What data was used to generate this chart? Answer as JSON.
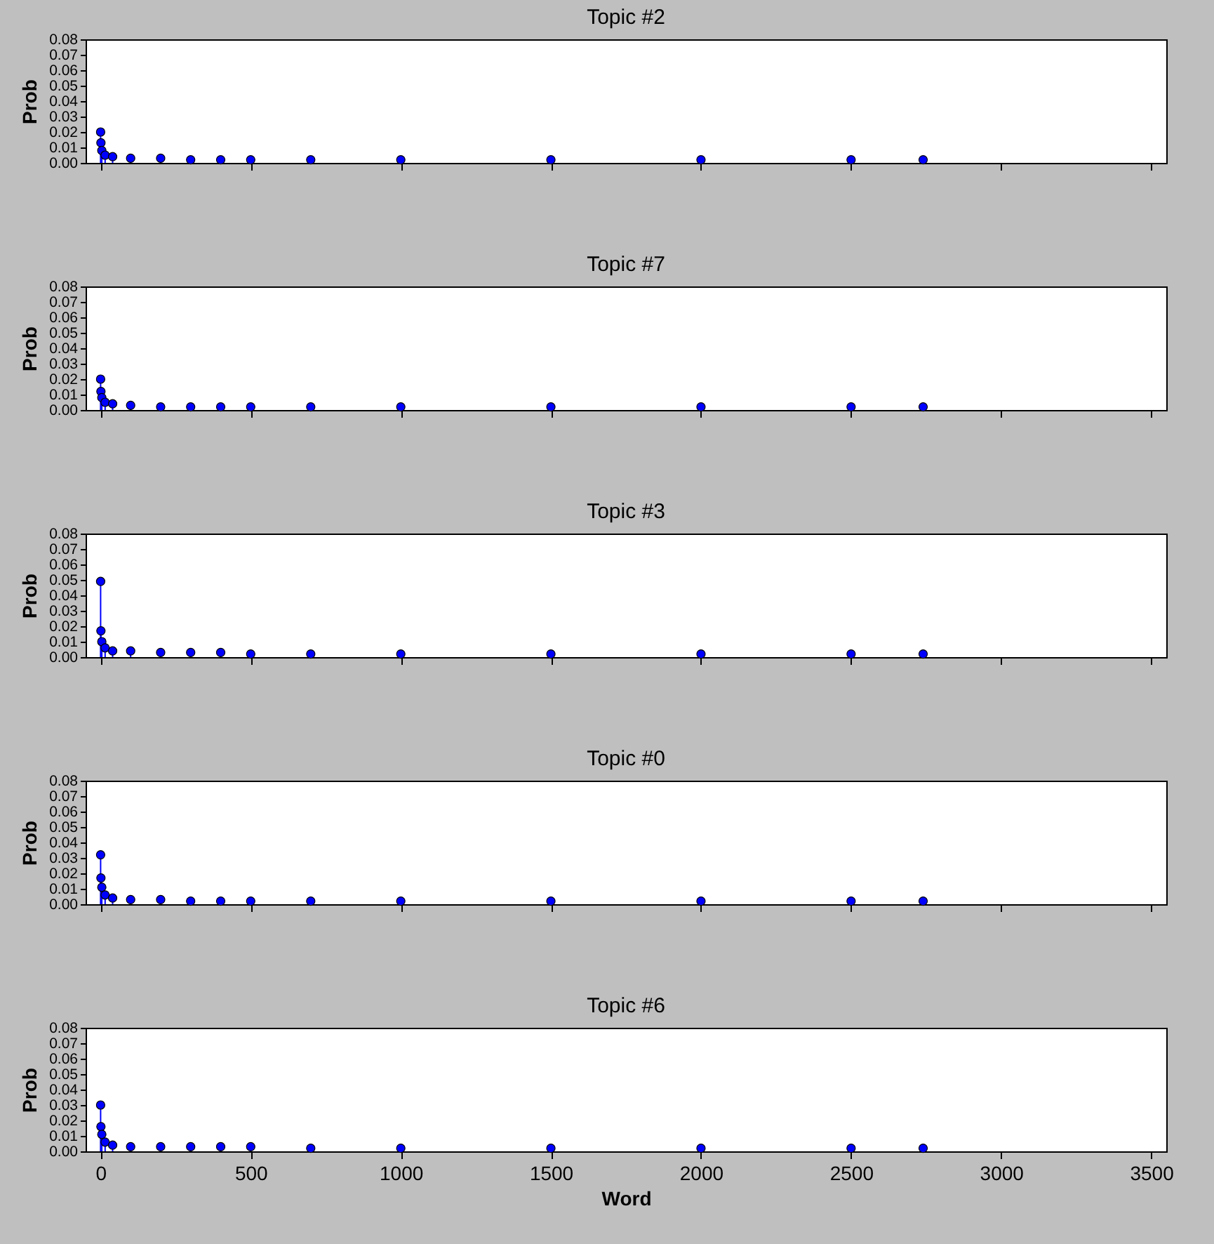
{
  "chart_data": [
    {
      "type": "lollipop",
      "title": "Topic #2",
      "ylabel": "Prob",
      "marker": "circle",
      "tick_labels": "y",
      "xlim": [
        -50,
        3550
      ],
      "xticks": [
        0,
        500,
        1000,
        1500,
        2000,
        2500,
        3000,
        3500
      ],
      "ylim": [
        0,
        0.08
      ],
      "yticks": [
        {
          "value": 0,
          "label": "0.00"
        },
        {
          "value": 0.01,
          "label": "0.01"
        },
        {
          "value": 0.02,
          "label": "0.02"
        },
        {
          "value": 0.03,
          "label": "0.03"
        },
        {
          "value": 0.04,
          "label": "0.04"
        },
        {
          "value": 0.05,
          "label": "0.05"
        },
        {
          "value": 0.06,
          "label": "0.06"
        },
        {
          "value": 0.07,
          "label": "0.07"
        },
        {
          "value": 0.08,
          "label": "0.08"
        }
      ],
      "x": [
        0,
        1,
        4,
        15,
        40,
        100,
        200,
        300,
        400,
        500,
        700,
        1000,
        1500,
        2000,
        2500,
        2740
      ],
      "series": [
        {
          "color": "#0000ff",
          "values": [
            0.02,
            0.013,
            0.008,
            0.005,
            0.004,
            0.003,
            0.003,
            0.002,
            0.002,
            0.002,
            0.002,
            0.002,
            0.002,
            0.002,
            0.002,
            0.002
          ]
        }
      ]
    },
    {
      "type": "lollipop",
      "title": "Topic #7",
      "ylabel": "Prob",
      "marker": "circle",
      "tick_labels": "y",
      "xlim": [
        -50,
        3550
      ],
      "xticks": [
        0,
        500,
        1000,
        1500,
        2000,
        2500,
        3000,
        3500
      ],
      "ylim": [
        0,
        0.08
      ],
      "yticks": [
        {
          "value": 0,
          "label": "0.00"
        },
        {
          "value": 0.01,
          "label": "0.01"
        },
        {
          "value": 0.02,
          "label": "0.02"
        },
        {
          "value": 0.03,
          "label": "0.03"
        },
        {
          "value": 0.04,
          "label": "0.04"
        },
        {
          "value": 0.05,
          "label": "0.05"
        },
        {
          "value": 0.06,
          "label": "0.06"
        },
        {
          "value": 0.07,
          "label": "0.07"
        },
        {
          "value": 0.08,
          "label": "0.08"
        }
      ],
      "x": [
        0,
        1,
        4,
        15,
        40,
        100,
        200,
        300,
        400,
        500,
        700,
        1000,
        1500,
        2000,
        2500,
        2740
      ],
      "series": [
        {
          "color": "#0000ff",
          "values": [
            0.02,
            0.012,
            0.008,
            0.005,
            0.004,
            0.003,
            0.002,
            0.002,
            0.002,
            0.002,
            0.002,
            0.002,
            0.002,
            0.002,
            0.002,
            0.002
          ]
        }
      ]
    },
    {
      "type": "lollipop",
      "title": "Topic #3",
      "ylabel": "Prob",
      "marker": "circle",
      "tick_labels": "y",
      "xlim": [
        -50,
        3550
      ],
      "xticks": [
        0,
        500,
        1000,
        1500,
        2000,
        2500,
        3000,
        3500
      ],
      "ylim": [
        0,
        0.08
      ],
      "yticks": [
        {
          "value": 0,
          "label": "0.00"
        },
        {
          "value": 0.01,
          "label": "0.01"
        },
        {
          "value": 0.02,
          "label": "0.02"
        },
        {
          "value": 0.03,
          "label": "0.03"
        },
        {
          "value": 0.04,
          "label": "0.04"
        },
        {
          "value": 0.05,
          "label": "0.05"
        },
        {
          "value": 0.06,
          "label": "0.06"
        },
        {
          "value": 0.07,
          "label": "0.07"
        },
        {
          "value": 0.08,
          "label": "0.08"
        }
      ],
      "x": [
        0,
        1,
        4,
        15,
        40,
        100,
        200,
        300,
        400,
        500,
        700,
        1000,
        1500,
        2000,
        2500,
        2740
      ],
      "series": [
        {
          "color": "#0000ff",
          "values": [
            0.049,
            0.017,
            0.01,
            0.006,
            0.004,
            0.004,
            0.003,
            0.003,
            0.003,
            0.002,
            0.002,
            0.002,
            0.002,
            0.002,
            0.002,
            0.002
          ]
        }
      ]
    },
    {
      "type": "lollipop",
      "title": "Topic #0",
      "ylabel": "Prob",
      "marker": "circle",
      "tick_labels": "y",
      "xlim": [
        -50,
        3550
      ],
      "xticks": [
        0,
        500,
        1000,
        1500,
        2000,
        2500,
        3000,
        3500
      ],
      "ylim": [
        0,
        0.08
      ],
      "yticks": [
        {
          "value": 0,
          "label": "0.00"
        },
        {
          "value": 0.01,
          "label": "0.01"
        },
        {
          "value": 0.02,
          "label": "0.02"
        },
        {
          "value": 0.03,
          "label": "0.03"
        },
        {
          "value": 0.04,
          "label": "0.04"
        },
        {
          "value": 0.05,
          "label": "0.05"
        },
        {
          "value": 0.06,
          "label": "0.06"
        },
        {
          "value": 0.07,
          "label": "0.07"
        },
        {
          "value": 0.08,
          "label": "0.08"
        }
      ],
      "x": [
        0,
        1,
        4,
        15,
        40,
        100,
        200,
        300,
        400,
        500,
        700,
        1000,
        1500,
        2000,
        2500,
        2740
      ],
      "series": [
        {
          "color": "#0000ff",
          "values": [
            0.032,
            0.017,
            0.011,
            0.006,
            0.004,
            0.003,
            0.003,
            0.002,
            0.002,
            0.002,
            0.002,
            0.002,
            0.002,
            0.002,
            0.002,
            0.002
          ]
        }
      ]
    },
    {
      "type": "lollipop",
      "title": "Topic #6",
      "xlabel": "Word",
      "ylabel": "Prob",
      "marker": "circle",
      "xlim": [
        -50,
        3550
      ],
      "xticks": [
        0,
        500,
        1000,
        1500,
        2000,
        2500,
        3000,
        3500
      ],
      "ylim": [
        0,
        0.08
      ],
      "yticks": [
        {
          "value": 0,
          "label": "0.00"
        },
        {
          "value": 0.01,
          "label": "0.01"
        },
        {
          "value": 0.02,
          "label": "0.02"
        },
        {
          "value": 0.03,
          "label": "0.03"
        },
        {
          "value": 0.04,
          "label": "0.04"
        },
        {
          "value": 0.05,
          "label": "0.05"
        },
        {
          "value": 0.06,
          "label": "0.06"
        },
        {
          "value": 0.07,
          "label": "0.07"
        },
        {
          "value": 0.08,
          "label": "0.08"
        }
      ],
      "x": [
        0,
        1,
        4,
        15,
        40,
        100,
        200,
        300,
        400,
        500,
        700,
        1000,
        1500,
        2000,
        2500,
        2740
      ],
      "series": [
        {
          "color": "#0000ff",
          "values": [
            0.03,
            0.016,
            0.011,
            0.006,
            0.004,
            0.003,
            0.003,
            0.003,
            0.003,
            0.003,
            0.002,
            0.002,
            0.002,
            0.002,
            0.002,
            0.002
          ]
        }
      ]
    }
  ]
}
